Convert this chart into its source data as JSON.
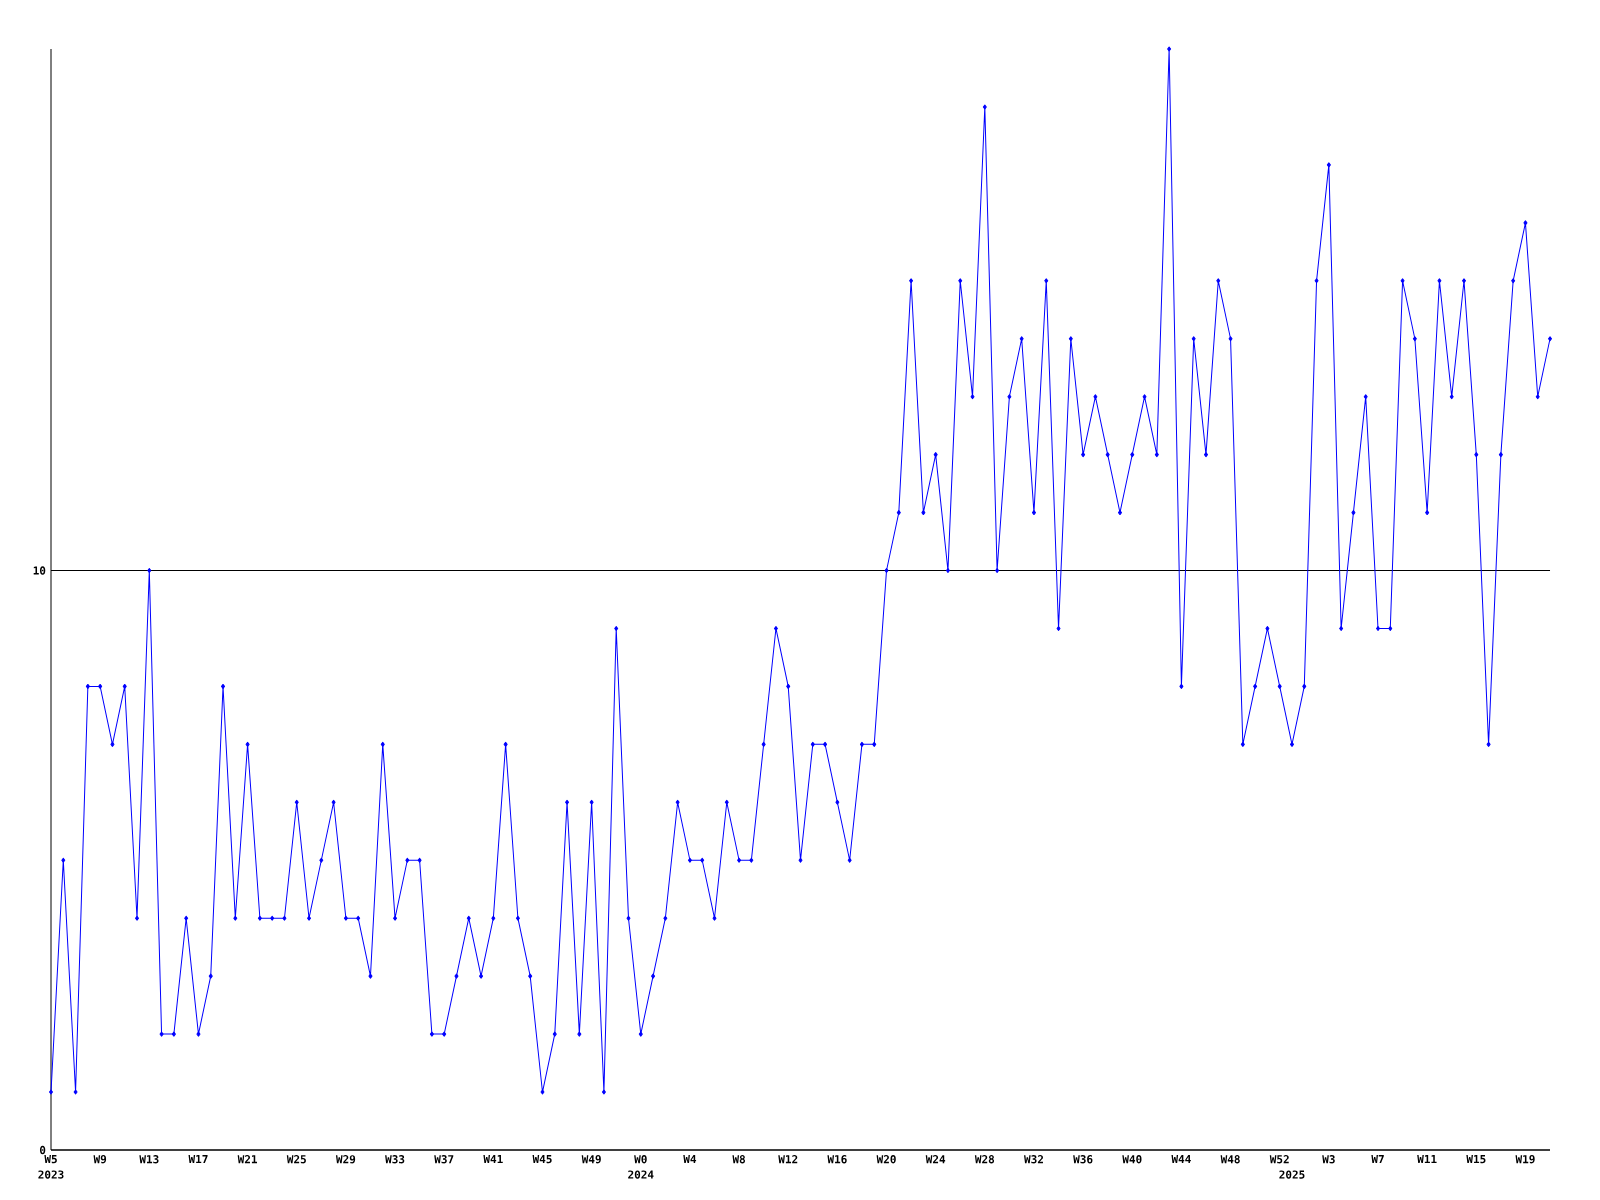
{
  "chart_data": {
    "type": "line",
    "categories": [
      "W5",
      null,
      null,
      null,
      "W9",
      null,
      null,
      null,
      "W13",
      null,
      null,
      null,
      "W17",
      null,
      null,
      null,
      "W21",
      null,
      null,
      null,
      "W25",
      null,
      null,
      null,
      "W29",
      null,
      null,
      null,
      "W33",
      null,
      null,
      null,
      "W37",
      null,
      null,
      null,
      "W41",
      null,
      null,
      null,
      "W45",
      null,
      null,
      null,
      "W49",
      null,
      null,
      null,
      "W0",
      null,
      null,
      null,
      "W4",
      null,
      null,
      null,
      "W8",
      null,
      null,
      null,
      "W12",
      null,
      null,
      null,
      "W16",
      null,
      null,
      null,
      "W20",
      null,
      null,
      null,
      "W24",
      null,
      null,
      null,
      "W28",
      null,
      null,
      null,
      "W32",
      null,
      null,
      null,
      "W36",
      null,
      null,
      null,
      "W40",
      null,
      null,
      null,
      "W44",
      null,
      null,
      null,
      "W48",
      null,
      null,
      null,
      "W52",
      null,
      null,
      null,
      "W3",
      null,
      null,
      null,
      "W7",
      null,
      null,
      null,
      "W11",
      null,
      null,
      null,
      "W15",
      null,
      null,
      null,
      "W19",
      null,
      null
    ],
    "values": [
      1,
      5,
      1,
      8,
      8,
      7,
      8,
      4,
      10,
      2,
      2,
      4,
      2,
      3,
      8,
      4,
      7,
      4,
      4,
      4,
      6,
      4,
      5,
      6,
      4,
      4,
      3,
      7,
      4,
      5,
      5,
      2,
      2,
      3,
      4,
      3,
      4,
      7,
      4,
      3,
      1,
      2,
      6,
      2,
      6,
      1,
      9,
      4,
      2,
      3,
      4,
      6,
      5,
      5,
      4,
      6,
      5,
      5,
      7,
      9,
      8,
      5,
      7,
      7,
      6,
      5,
      7,
      7,
      10,
      11,
      15,
      11,
      12,
      10,
      15,
      13,
      18,
      10,
      13,
      14,
      11,
      15,
      9,
      14,
      12,
      13,
      12,
      11,
      12,
      13,
      12,
      19,
      8,
      14,
      12,
      15,
      14,
      7,
      8,
      9,
      8,
      7,
      8,
      15,
      17,
      9,
      11,
      13,
      9,
      9,
      15,
      14,
      11,
      15,
      13,
      15,
      12,
      7,
      12,
      15,
      16,
      13,
      14
    ],
    "color": "#0000ff",
    "marker": "diamond",
    "grid": "y",
    "ylim": [
      0,
      19
    ],
    "yticks": [
      0,
      10
    ],
    "annotations": [
      "2023",
      "2024",
      "2025"
    ]
  }
}
